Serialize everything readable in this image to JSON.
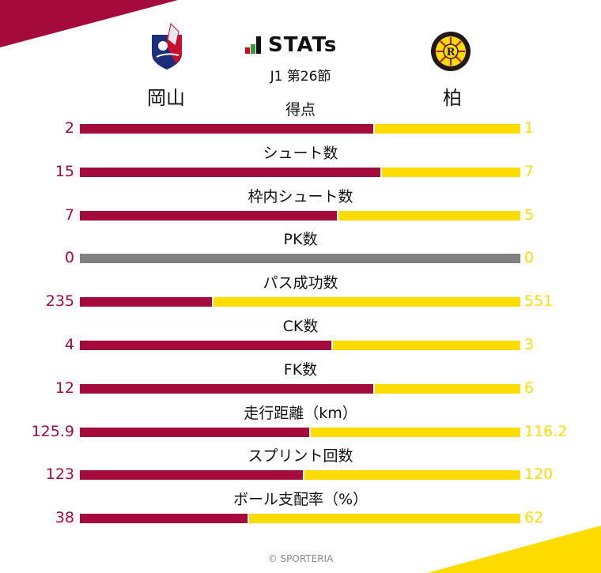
{
  "header": {
    "brand": "STATs",
    "round": "J1 第26節",
    "brand_icon_colors": [
      "#d4001f",
      "#2e9a3a",
      "#111111"
    ]
  },
  "teams": {
    "home": {
      "name": "岡山",
      "logo": "fagiano-okayama-crest",
      "color": "#a50a3c"
    },
    "away": {
      "name": "柏",
      "logo": "kashiwa-reysol-crest",
      "color": "#ffdc00"
    }
  },
  "colors": {
    "home": "#a50a3c",
    "away": "#ffdc00",
    "neutral": "#808080"
  },
  "stats": [
    {
      "label": "得点",
      "home": "2",
      "away": "1"
    },
    {
      "label": "シュート数",
      "home": "15",
      "away": "7"
    },
    {
      "label": "枠内シュート数",
      "home": "7",
      "away": "5"
    },
    {
      "label": "PK数",
      "home": "0",
      "away": "0"
    },
    {
      "label": "パス成功数",
      "home": "235",
      "away": "551"
    },
    {
      "label": "CK数",
      "home": "4",
      "away": "3"
    },
    {
      "label": "FK数",
      "home": "12",
      "away": "6"
    },
    {
      "label": "走行距離（km）",
      "home": "125.9",
      "away": "116.2"
    },
    {
      "label": "スプリント回数",
      "home": "123",
      "away": "120"
    },
    {
      "label": "ボール支配率（%）",
      "home": "38",
      "away": "62"
    }
  ],
  "footer": {
    "copyright": "© SPORTERIA"
  },
  "chart_data": {
    "type": "bar",
    "orientation": "horizontal-stacked-100",
    "title": "STATs J1 第26節",
    "categories": [
      "得点",
      "シュート数",
      "枠内シュート数",
      "PK数",
      "パス成功数",
      "CK数",
      "FK数",
      "走行距離（km）",
      "スプリント回数",
      "ボール支配率（%）"
    ],
    "series": [
      {
        "name": "岡山",
        "color": "#a50a3c",
        "values": [
          2,
          15,
          7,
          0,
          235,
          4,
          12,
          125.9,
          123,
          38
        ]
      },
      {
        "name": "柏",
        "color": "#ffdc00",
        "values": [
          1,
          7,
          5,
          0,
          551,
          3,
          6,
          116.2,
          120,
          62
        ]
      }
    ],
    "legend": "team names above bars (left: 岡山, right: 柏)",
    "grid": false
  }
}
